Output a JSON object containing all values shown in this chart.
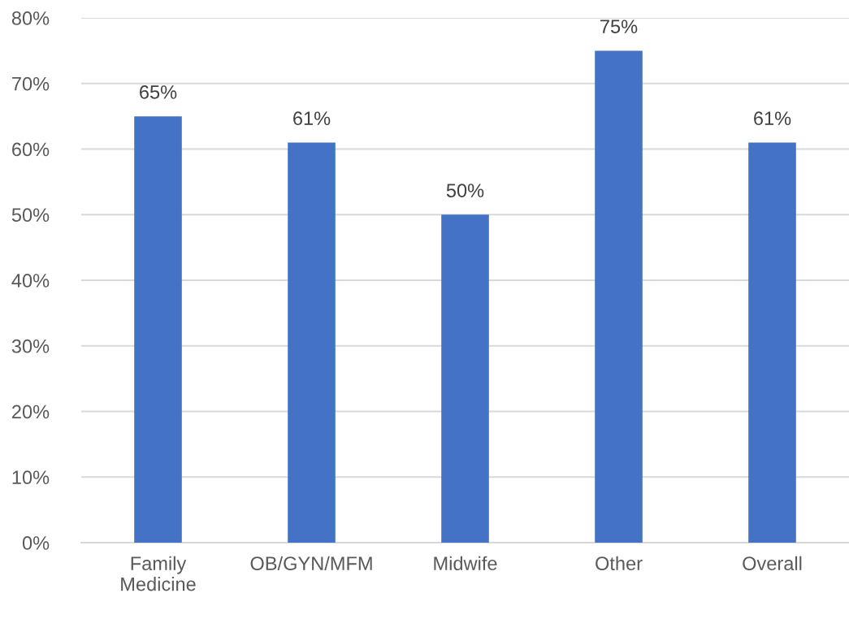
{
  "chart_data": {
    "type": "bar",
    "categories": [
      "Family\nMedicine",
      "OB/GYN/MFM",
      "Midwife",
      "Other",
      "Overall"
    ],
    "values": [
      65,
      61,
      50,
      75,
      61
    ],
    "value_labels": [
      "65%",
      "61%",
      "50%",
      "75%",
      "61%"
    ],
    "color": "#4472c4",
    "ylim": [
      0,
      80
    ],
    "yticks": [
      {
        "value": 0,
        "label": "0%"
      },
      {
        "value": 10,
        "label": "10%"
      },
      {
        "value": 20,
        "label": "20%"
      },
      {
        "value": 30,
        "label": "30%"
      },
      {
        "value": 40,
        "label": "40%"
      },
      {
        "value": 50,
        "label": "50%"
      },
      {
        "value": 60,
        "label": "60%"
      },
      {
        "value": 70,
        "label": "70%"
      },
      {
        "value": 80,
        "label": "80%"
      }
    ],
    "grid": "y",
    "legend": false
  }
}
